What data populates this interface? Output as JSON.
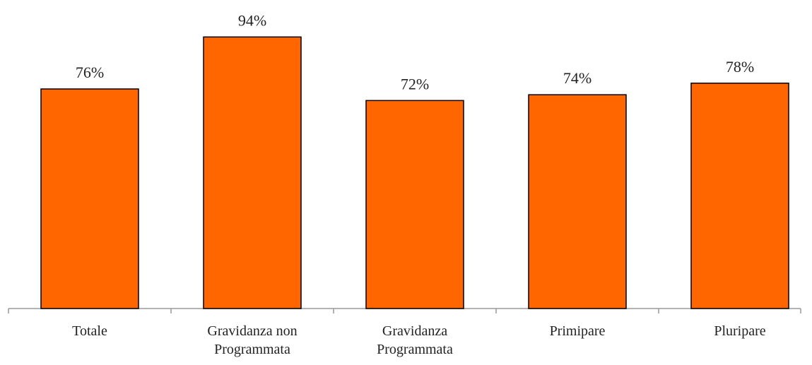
{
  "chart_data": {
    "type": "bar",
    "categories": [
      "Totale",
      "Gravidanza non Programmata",
      "Gravidanza Programmata",
      "Primipare",
      "Pluripare"
    ],
    "values": [
      76,
      94,
      72,
      74,
      78
    ],
    "value_labels": [
      "76%",
      "94%",
      "72%",
      "74%",
      "78%"
    ],
    "color": "#ff6600"
  }
}
